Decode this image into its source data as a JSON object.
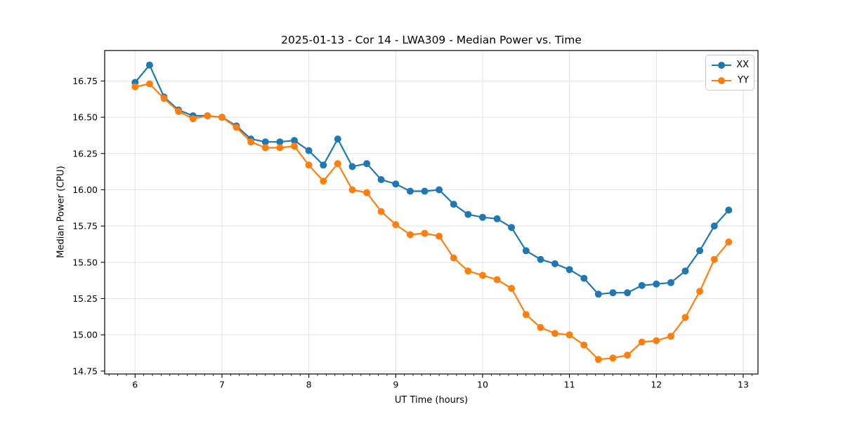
{
  "chart_data": {
    "type": "line",
    "title": "2025-01-13 - Cor 14 - LWA309 - Median Power vs. Time",
    "xlabel": "UT Time (hours)",
    "ylabel": "Median Power (CPU)",
    "xlim": [
      5.65,
      13.17
    ],
    "ylim": [
      14.73,
      16.96
    ],
    "x_ticks": [
      6,
      7,
      8,
      9,
      10,
      11,
      12,
      13
    ],
    "x_minor_tick_step": 0.1,
    "y_ticks": [
      14.75,
      15.0,
      15.25,
      15.5,
      15.75,
      16.0,
      16.25,
      16.5,
      16.75
    ],
    "grid": true,
    "grid_color": "#e3e3e3",
    "legend_position": "upper right",
    "x": [
      6,
      6.167,
      6.333,
      6.5,
      6.667,
      6.833,
      7,
      7.167,
      7.333,
      7.5,
      7.667,
      7.833,
      8,
      8.167,
      8.333,
      8.5,
      8.667,
      8.833,
      9,
      9.167,
      9.333,
      9.5,
      9.667,
      9.833,
      10,
      10.167,
      10.333,
      10.5,
      10.667,
      10.833,
      11,
      11.167,
      11.333,
      11.5,
      11.667,
      11.833,
      12,
      12.167,
      12.333,
      12.5,
      12.667,
      12.833
    ],
    "series": [
      {
        "name": "XX",
        "color": "#1f77b4",
        "values": [
          16.74,
          16.86,
          16.64,
          16.55,
          16.51,
          16.51,
          16.5,
          16.44,
          16.35,
          16.33,
          16.33,
          16.34,
          16.27,
          16.17,
          16.35,
          16.16,
          16.18,
          16.07,
          16.04,
          15.99,
          15.99,
          16.0,
          15.9,
          15.83,
          15.81,
          15.8,
          15.74,
          15.58,
          15.52,
          15.49,
          15.45,
          15.39,
          15.28,
          15.29,
          15.29,
          15.34,
          15.35,
          15.36,
          15.44,
          15.58,
          15.75,
          15.86
        ]
      },
      {
        "name": "YY",
        "color": "#ff7f0e",
        "values": [
          16.71,
          16.73,
          16.63,
          16.54,
          16.49,
          16.51,
          16.5,
          16.43,
          16.33,
          16.29,
          16.29,
          16.3,
          16.17,
          16.06,
          16.18,
          16.0,
          15.98,
          15.85,
          15.76,
          15.69,
          15.7,
          15.68,
          15.53,
          15.44,
          15.41,
          15.38,
          15.32,
          15.14,
          15.05,
          15.01,
          15.0,
          14.93,
          14.83,
          14.84,
          14.86,
          14.95,
          14.96,
          14.99,
          15.12,
          15.3,
          15.52,
          15.64
        ]
      }
    ]
  }
}
